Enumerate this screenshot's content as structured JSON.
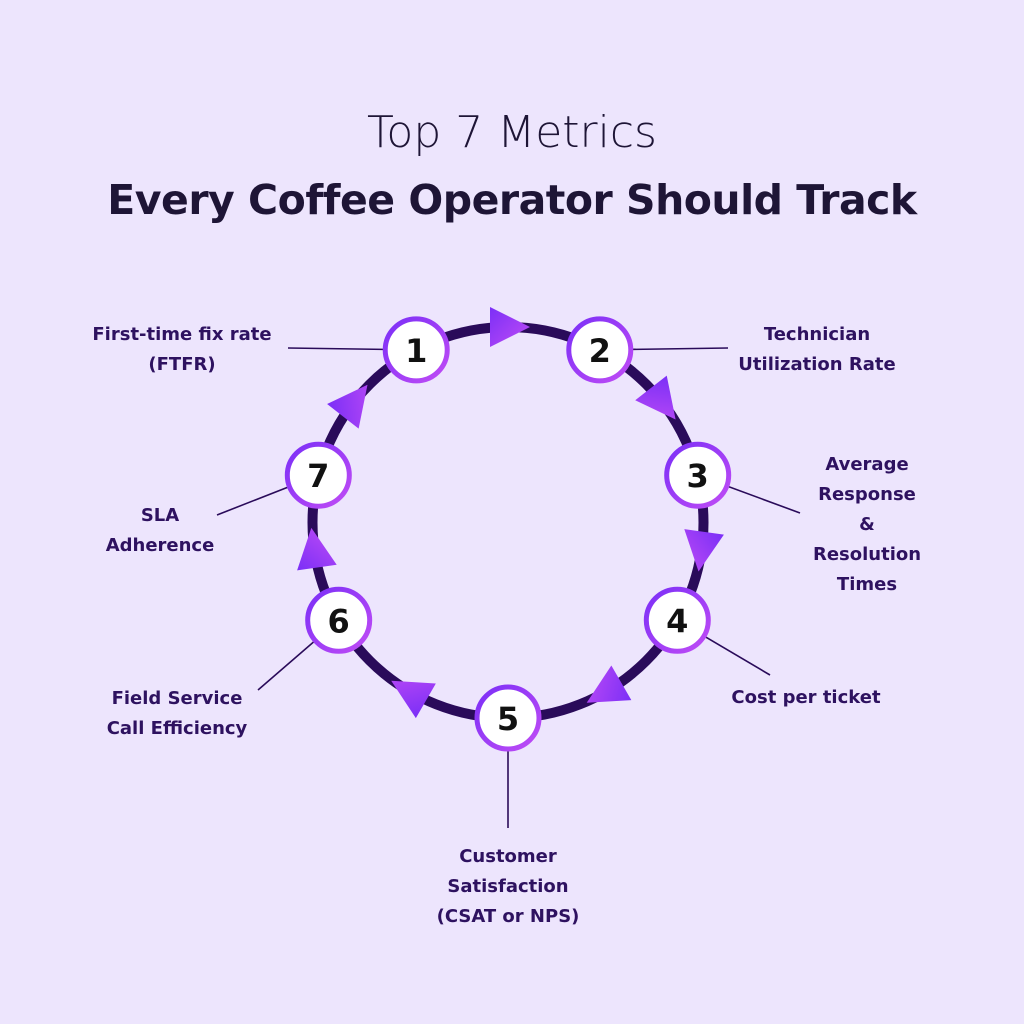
{
  "title": {
    "line1": "Top 7 Metrics",
    "line2": "Every Coffee Operator Should Track"
  },
  "colors": {
    "background": "#ede5fd",
    "ring": "#2a0b5a",
    "accent_start": "#7b2ff7",
    "accent_end": "#c04cf5",
    "label": "#2e1260"
  },
  "nodes": [
    {
      "number": "1",
      "label": [
        "First-time fix rate",
        "(FTFR)"
      ]
    },
    {
      "number": "2",
      "label": [
        "Technician",
        "Utilization Rate"
      ]
    },
    {
      "number": "3",
      "label": [
        "Average",
        "Response",
        "&",
        "Resolution",
        "Times"
      ]
    },
    {
      "number": "4",
      "label": [
        "Cost per ticket"
      ]
    },
    {
      "number": "5",
      "label": [
        "Customer",
        "Satisfaction",
        "(CSAT or NPS)"
      ]
    },
    {
      "number": "6",
      "label": [
        "Field Service",
        "Call Efficiency"
      ]
    },
    {
      "number": "7",
      "label": [
        "SLA",
        "Adherence"
      ]
    }
  ]
}
